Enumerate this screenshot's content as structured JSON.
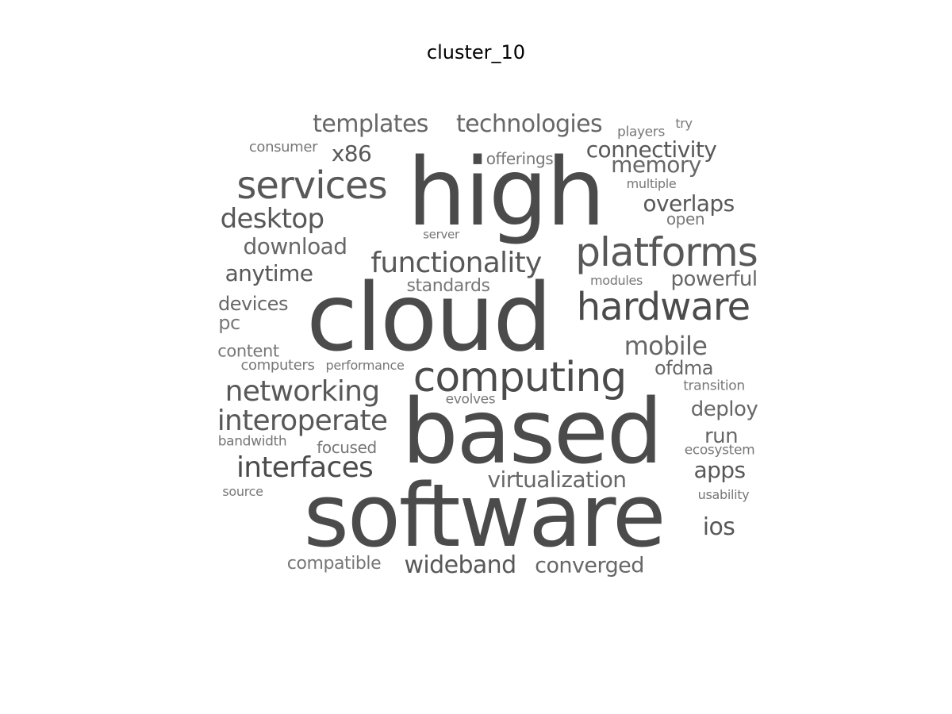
{
  "title": "cluster_10",
  "colors": {
    "background": "#ffffff",
    "title": "#000000",
    "words": [
      "#4b4b4b",
      "#585858",
      "#676767",
      "#777777"
    ]
  },
  "words": [
    {
      "text": "high"
    },
    {
      "text": "cloud"
    },
    {
      "text": "based"
    },
    {
      "text": "software"
    },
    {
      "text": "computing"
    },
    {
      "text": "platforms"
    },
    {
      "text": "hardware"
    },
    {
      "text": "services"
    },
    {
      "text": "functionality"
    },
    {
      "text": "networking"
    },
    {
      "text": "interoperate"
    },
    {
      "text": "interfaces"
    },
    {
      "text": "desktop"
    },
    {
      "text": "templates"
    },
    {
      "text": "technologies"
    },
    {
      "text": "connectivity"
    },
    {
      "text": "memory"
    },
    {
      "text": "overlaps"
    },
    {
      "text": "mobile"
    },
    {
      "text": "virtualization"
    },
    {
      "text": "wideband"
    },
    {
      "text": "converged"
    },
    {
      "text": "anytime"
    },
    {
      "text": "download"
    },
    {
      "text": "x86"
    },
    {
      "text": "powerful"
    },
    {
      "text": "ofdma"
    },
    {
      "text": "deploy"
    },
    {
      "text": "apps"
    },
    {
      "text": "ios"
    },
    {
      "text": "run"
    },
    {
      "text": "devices"
    },
    {
      "text": "compatible"
    },
    {
      "text": "standards"
    },
    {
      "text": "pc"
    },
    {
      "text": "content"
    },
    {
      "text": "consumer"
    },
    {
      "text": "offerings"
    },
    {
      "text": "focused"
    },
    {
      "text": "open"
    },
    {
      "text": "computers"
    },
    {
      "text": "performance"
    },
    {
      "text": "evolves"
    },
    {
      "text": "bandwidth"
    },
    {
      "text": "source"
    },
    {
      "text": "players"
    },
    {
      "text": "try"
    },
    {
      "text": "multiple"
    },
    {
      "text": "server"
    },
    {
      "text": "modules"
    },
    {
      "text": "transition"
    },
    {
      "text": "ecosystem"
    },
    {
      "text": "usability"
    }
  ]
}
